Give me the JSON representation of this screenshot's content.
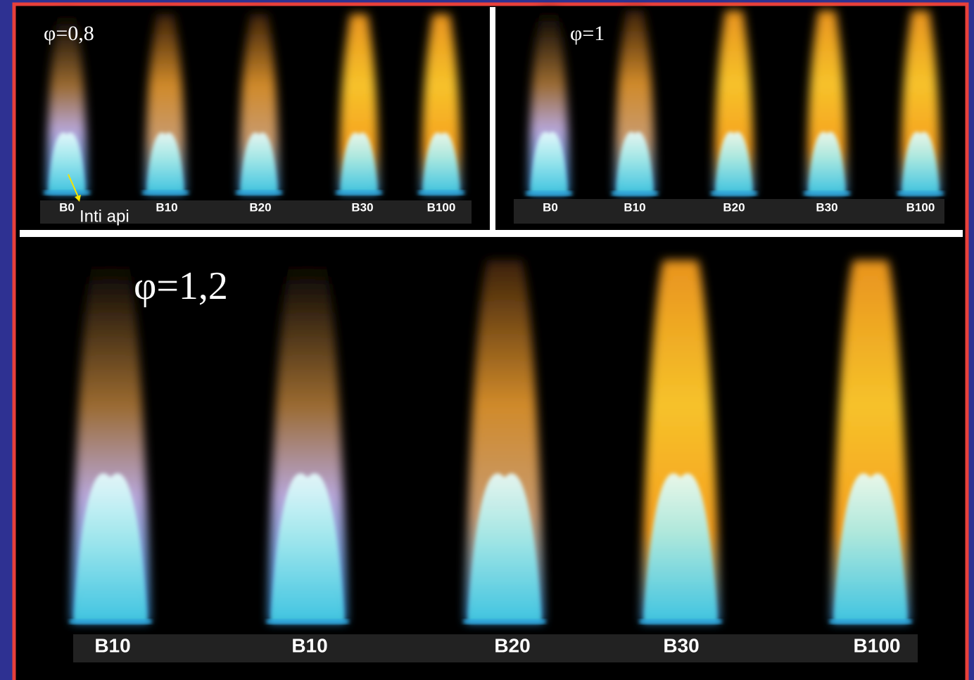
{
  "panels": [
    {
      "label": "φ=0,8",
      "flames": [
        "B0",
        "B10",
        "B20",
        "B30",
        "B100"
      ],
      "annotation": "Inti api"
    },
    {
      "label": "φ=1",
      "flames": [
        "B0",
        "B10",
        "B20",
        "B30",
        "B100"
      ]
    },
    {
      "label": "φ=1,2",
      "flames": [
        "B10",
        "B10",
        "B20",
        "B30",
        "B100"
      ]
    }
  ]
}
